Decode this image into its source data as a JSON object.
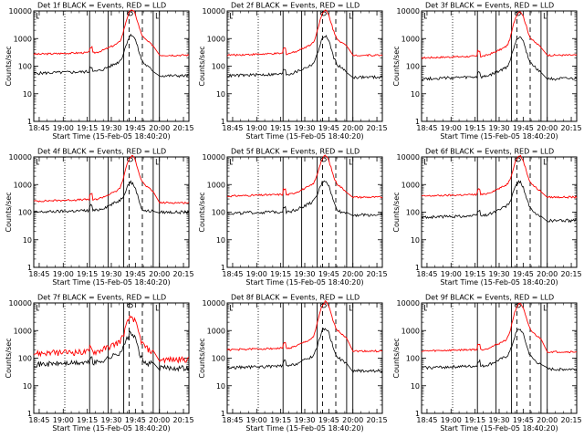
{
  "chart_data": [
    {
      "type": "line",
      "title": "Det 1f BLACK = Events, RED = LLD",
      "xlabel": "Start Time (15-Feb-05 18:40:20)",
      "ylabel": "Counts/sec",
      "xticks": [
        "18:45",
        "19:00",
        "19:15",
        "19:30",
        "19:45",
        "20:00",
        "20:15"
      ],
      "yticks": [
        "1",
        "10",
        "100",
        "1000",
        "10000"
      ],
      "ylim": [
        1,
        10000
      ],
      "scale": "log",
      "black_base": 55,
      "red_base": 270,
      "black_peak": 1100,
      "red_peak": 9000,
      "black_tail": 45,
      "red_tail": 250,
      "series": [
        {
          "name": "Events",
          "color": "#000000"
        },
        {
          "name": "LLD",
          "color": "#ff0000"
        }
      ]
    },
    {
      "type": "line",
      "title": "Det 2f BLACK = Events, RED = LLD",
      "xlabel": "Start Time (15-Feb-05 18:40:20)",
      "ylabel": "Counts/sec",
      "xticks": [
        "18:45",
        "19:00",
        "19:15",
        "19:30",
        "19:45",
        "20:00",
        "20:15"
      ],
      "yticks": [
        "1",
        "10",
        "100",
        "1000",
        "10000"
      ],
      "ylim": [
        1,
        10000
      ],
      "scale": "log",
      "black_base": 45,
      "red_base": 250,
      "black_peak": 1000,
      "red_peak": 8500,
      "black_tail": 40,
      "red_tail": 250,
      "series": [
        {
          "name": "Events",
          "color": "#000000"
        },
        {
          "name": "LLD",
          "color": "#ff0000"
        }
      ]
    },
    {
      "type": "line",
      "title": "Det 3f BLACK = Events, RED = LLD",
      "xlabel": "Start Time (15-Feb-05 18:40:20)",
      "ylabel": "Counts/sec",
      "xticks": [
        "18:45",
        "19:00",
        "19:15",
        "19:30",
        "19:45",
        "20:00",
        "20:15"
      ],
      "yticks": [
        "1",
        "10",
        "100",
        "1000",
        "10000"
      ],
      "ylim": [
        1,
        10000
      ],
      "scale": "log",
      "black_base": 35,
      "red_base": 200,
      "black_peak": 1000,
      "red_peak": 8000,
      "black_tail": 35,
      "red_tail": 250,
      "series": [
        {
          "name": "Events",
          "color": "#000000"
        },
        {
          "name": "LLD",
          "color": "#ff0000"
        }
      ]
    },
    {
      "type": "line",
      "title": "Det 4f BLACK = Events, RED = LLD",
      "xlabel": "Start Time (15-Feb-05 18:40:20)",
      "ylabel": "Counts/sec",
      "xticks": [
        "18:45",
        "19:00",
        "19:15",
        "19:30",
        "19:45",
        "20:00",
        "20:15"
      ],
      "yticks": [
        "1",
        "10",
        "100",
        "1000",
        "10000"
      ],
      "ylim": [
        1,
        10000
      ],
      "scale": "log",
      "black_base": 100,
      "red_base": 250,
      "black_peak": 900,
      "red_peak": 9000,
      "black_tail": 100,
      "red_tail": 220,
      "series": [
        {
          "name": "Events",
          "color": "#000000"
        },
        {
          "name": "LLD",
          "color": "#ff0000"
        }
      ]
    },
    {
      "type": "line",
      "title": "Det 5f BLACK = Events, RED = LLD",
      "xlabel": "Start Time (15-Feb-05 18:40:20)",
      "ylabel": "Counts/sec",
      "xticks": [
        "18:45",
        "19:00",
        "19:15",
        "19:30",
        "19:45",
        "20:00",
        "20:15"
      ],
      "yticks": [
        "1",
        "10",
        "100",
        "1000",
        "10000"
      ],
      "ylim": [
        1,
        10000
      ],
      "scale": "log",
      "black_base": 90,
      "red_base": 380,
      "black_peak": 1100,
      "red_peak": 9000,
      "black_tail": 80,
      "red_tail": 350,
      "series": [
        {
          "name": "Events",
          "color": "#000000"
        },
        {
          "name": "LLD",
          "color": "#ff0000"
        }
      ]
    },
    {
      "type": "line",
      "title": "Det 6f BLACK = Events, RED = LLD",
      "xlabel": "Start Time (15-Feb-05 18:40:20)",
      "ylabel": "Counts/sec",
      "xticks": [
        "18:45",
        "19:00",
        "19:15",
        "19:30",
        "19:45",
        "20:00",
        "20:15"
      ],
      "yticks": [
        "1",
        "10",
        "100",
        "1000",
        "10000"
      ],
      "ylim": [
        1,
        10000
      ],
      "scale": "log",
      "black_base": 65,
      "red_base": 380,
      "black_peak": 1000,
      "red_peak": 9000,
      "black_tail": 50,
      "red_tail": 350,
      "series": [
        {
          "name": "Events",
          "color": "#000000"
        },
        {
          "name": "LLD",
          "color": "#ff0000"
        }
      ]
    },
    {
      "type": "line",
      "title": "Det 7f BLACK = Events, RED = LLD",
      "xlabel": "Start Time (15-Feb-05 18:40:20)",
      "ylabel": "Counts/sec",
      "xticks": [
        "18:45",
        "19:00",
        "19:15",
        "19:30",
        "19:45",
        "20:00",
        "20:15"
      ],
      "yticks": [
        "1",
        "10",
        "100",
        "1000",
        "10000"
      ],
      "ylim": [
        1,
        10000
      ],
      "scale": "log",
      "black_base": 60,
      "red_base": 150,
      "black_peak": 600,
      "red_peak": 2500,
      "black_tail": 45,
      "red_tail": 90,
      "series": [
        {
          "name": "Events",
          "color": "#000000"
        },
        {
          "name": "LLD",
          "color": "#ff0000"
        }
      ]
    },
    {
      "type": "line",
      "title": "Det 8f BLACK = Events, RED = LLD",
      "xlabel": "Start Time (15-Feb-05 18:40:20)",
      "ylabel": "Counts/sec",
      "xticks": [
        "18:45",
        "19:00",
        "19:15",
        "19:30",
        "19:45",
        "20:00",
        "20:15"
      ],
      "yticks": [
        "1",
        "10",
        "100",
        "1000",
        "10000"
      ],
      "ylim": [
        1,
        10000
      ],
      "scale": "log",
      "black_base": 45,
      "red_base": 200,
      "black_peak": 1000,
      "red_peak": 9000,
      "black_tail": 35,
      "red_tail": 180,
      "series": [
        {
          "name": "Events",
          "color": "#000000"
        },
        {
          "name": "LLD",
          "color": "#ff0000"
        }
      ]
    },
    {
      "type": "line",
      "title": "Det 9f BLACK = Events, RED = LLD",
      "xlabel": "Start Time (15-Feb-05 18:40:20)",
      "ylabel": "Counts/sec",
      "xticks": [
        "18:45",
        "19:00",
        "19:15",
        "19:30",
        "19:45",
        "20:00",
        "20:15"
      ],
      "yticks": [
        "1",
        "10",
        "100",
        "1000",
        "10000"
      ],
      "ylim": [
        1,
        10000
      ],
      "scale": "log",
      "black_base": 45,
      "red_base": 180,
      "black_peak": 900,
      "red_peak": 8000,
      "black_tail": 40,
      "red_tail": 170,
      "series": [
        {
          "name": "Events",
          "color": "#000000"
        },
        {
          "name": "LLD",
          "color": "#ff0000"
        }
      ]
    }
  ]
}
